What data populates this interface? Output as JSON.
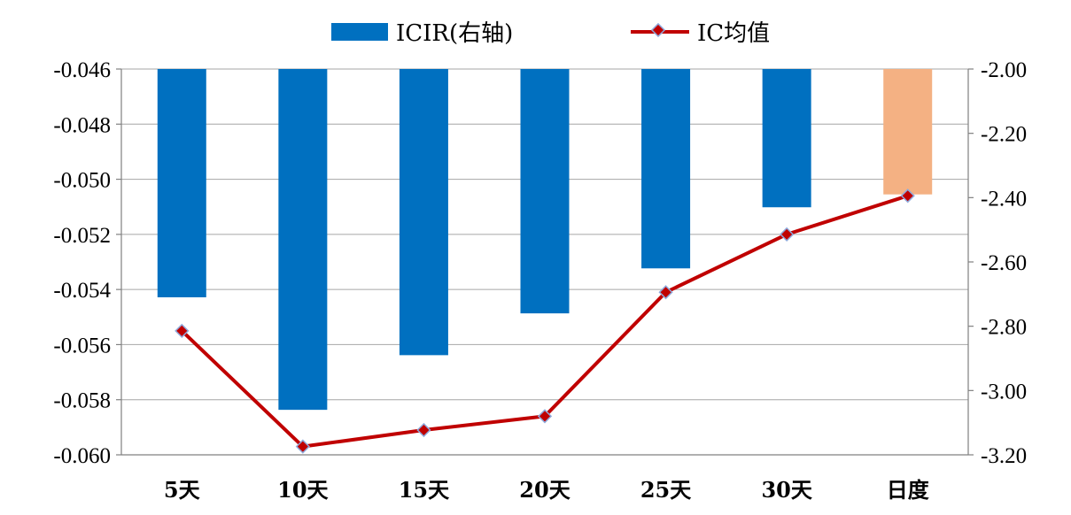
{
  "chart_data": {
    "type": "bar+line",
    "categories": [
      "5天",
      "10天",
      "15天",
      "20天",
      "25天",
      "30天",
      "日度"
    ],
    "series": [
      {
        "name": "ICIR(右轴)",
        "type": "bar",
        "axis": "right",
        "values": [
          -2.71,
          -3.06,
          -2.89,
          -2.76,
          -2.62,
          -2.43,
          -2.39
        ],
        "colors": [
          "#0070C0",
          "#0070C0",
          "#0070C0",
          "#0070C0",
          "#0070C0",
          "#0070C0",
          "#F4B183"
        ]
      },
      {
        "name": "IC均值",
        "type": "line",
        "axis": "left",
        "values": [
          -0.0555,
          -0.0597,
          -0.0591,
          -0.0586,
          -0.0541,
          -0.052,
          -0.0506
        ],
        "color": "#C00000",
        "marker_color": "#C00000",
        "marker_edge": "#8EA9DB"
      }
    ],
    "left_axis": {
      "ylim": [
        -0.06,
        -0.046
      ],
      "ticks": [
        "-0.046",
        "-0.048",
        "-0.050",
        "-0.052",
        "-0.054",
        "-0.056",
        "-0.058",
        "-0.060"
      ]
    },
    "right_axis": {
      "ylim": [
        -3.2,
        -2.0
      ],
      "ticks": [
        "-2.00",
        "-2.20",
        "-2.40",
        "-2.60",
        "-2.80",
        "-3.00",
        "-3.20"
      ],
      "inverted_bars_from_top": true
    },
    "grid": true,
    "legend_position": "top-center"
  }
}
